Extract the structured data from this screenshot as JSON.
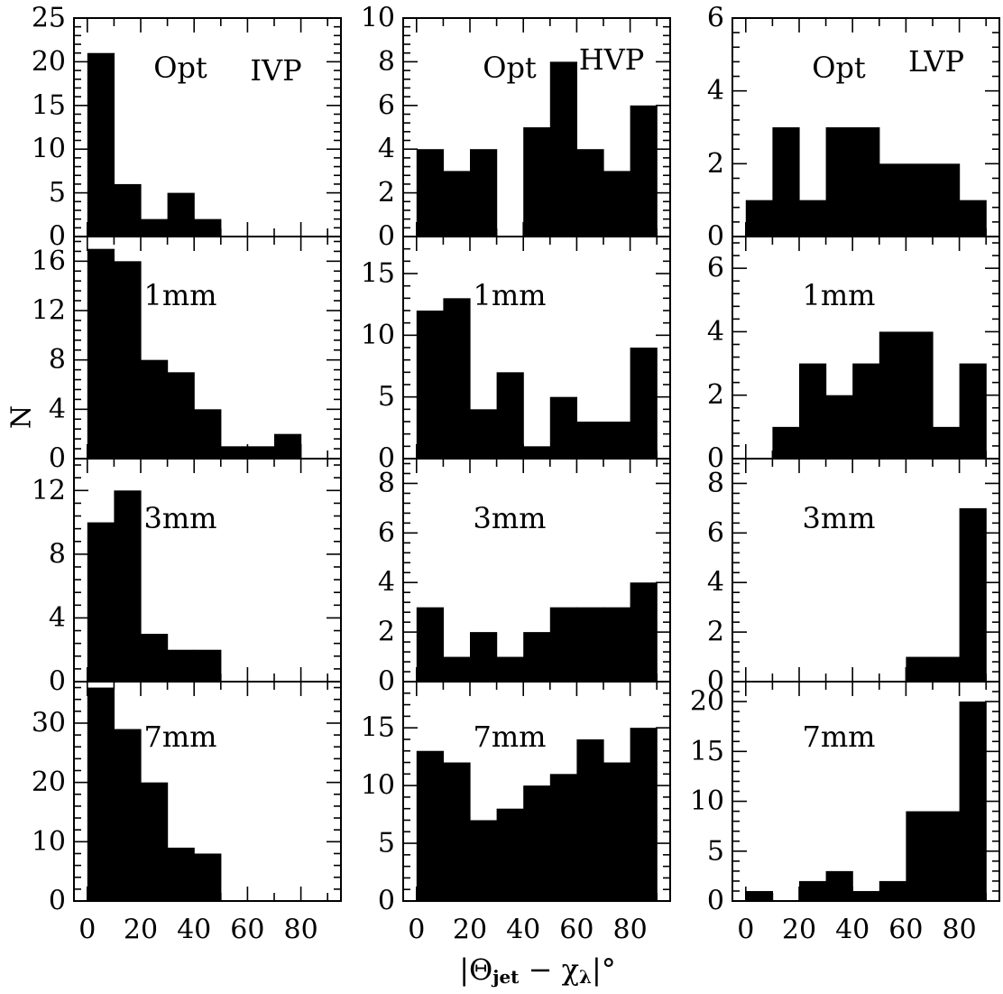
{
  "chart_data": {
    "type": "bar",
    "layout": "4x3 grid of histograms",
    "xlabel": "|Θ_jet − χ_λ|°",
    "ylabel": "N",
    "bin_edges": [
      0,
      10,
      20,
      30,
      40,
      50,
      60,
      70,
      80,
      90
    ],
    "xlim": [
      -5,
      95
    ],
    "x_ticks": [
      0,
      20,
      40,
      60,
      80
    ],
    "columns": [
      "IVP",
      "HVP",
      "LVP"
    ],
    "rows": [
      "Opt",
      "1mm",
      "3mm",
      "7mm"
    ],
    "panels": [
      {
        "row": "Opt",
        "column": "IVP",
        "label": "Opt",
        "group_label": "IVP",
        "ylim": [
          0,
          25
        ],
        "y_ticks": [
          0,
          5,
          10,
          15,
          20,
          25
        ],
        "values": [
          21,
          6,
          2,
          5,
          2,
          0,
          0,
          0,
          0
        ]
      },
      {
        "row": "Opt",
        "column": "HVP",
        "label": "Opt",
        "group_label": "HVP",
        "ylim": [
          0,
          10
        ],
        "y_ticks": [
          0,
          2,
          4,
          6,
          8,
          10
        ],
        "values": [
          4,
          3,
          4,
          0,
          5,
          8,
          4,
          3,
          6
        ]
      },
      {
        "row": "Opt",
        "column": "LVP",
        "label": "Opt",
        "group_label": "LVP",
        "ylim": [
          0,
          6
        ],
        "y_ticks": [
          0,
          2,
          4,
          6
        ],
        "values": [
          1,
          3,
          1,
          3,
          3,
          2,
          2,
          2,
          1
        ]
      },
      {
        "row": "1mm",
        "column": "IVP",
        "label": "1mm",
        "ylim": [
          0,
          18
        ],
        "y_ticks": [
          0,
          4,
          8,
          12,
          16
        ],
        "values": [
          17,
          16,
          8,
          7,
          4,
          1,
          1,
          2,
          0
        ]
      },
      {
        "row": "1mm",
        "column": "HVP",
        "label": "1mm",
        "ylim": [
          0,
          18
        ],
        "y_ticks": [
          0,
          5,
          10,
          15
        ],
        "values": [
          12,
          13,
          4,
          7,
          1,
          5,
          3,
          3,
          9
        ]
      },
      {
        "row": "1mm",
        "column": "LVP",
        "label": "1mm",
        "ylim": [
          0,
          7
        ],
        "y_ticks": [
          0,
          2,
          4,
          6
        ],
        "values": [
          0,
          1,
          3,
          2,
          3,
          4,
          4,
          1,
          3
        ]
      },
      {
        "row": "3mm",
        "column": "IVP",
        "label": "3mm",
        "ylim": [
          0,
          14
        ],
        "y_ticks": [
          0,
          4,
          8,
          12
        ],
        "values": [
          10,
          12,
          3,
          2,
          2,
          0,
          0,
          0,
          0
        ]
      },
      {
        "row": "3mm",
        "column": "HVP",
        "label": "3mm",
        "ylim": [
          0,
          9
        ],
        "y_ticks": [
          0,
          2,
          4,
          6,
          8
        ],
        "values": [
          3,
          1,
          2,
          1,
          2,
          3,
          3,
          3,
          4
        ]
      },
      {
        "row": "3mm",
        "column": "LVP",
        "label": "3mm",
        "ylim": [
          0,
          9
        ],
        "y_ticks": [
          0,
          2,
          4,
          6,
          8
        ],
        "values": [
          0,
          0,
          0,
          0,
          0,
          0,
          1,
          1,
          7
        ]
      },
      {
        "row": "7mm",
        "column": "IVP",
        "label": "7mm",
        "ylim": [
          0,
          37
        ],
        "y_ticks": [
          0,
          10,
          20,
          30
        ],
        "values": [
          36,
          29,
          20,
          9,
          8,
          0,
          0,
          0,
          0
        ]
      },
      {
        "row": "7mm",
        "column": "HVP",
        "label": "7mm",
        "ylim": [
          0,
          19
        ],
        "y_ticks": [
          0,
          5,
          10,
          15
        ],
        "values": [
          13,
          12,
          7,
          8,
          10,
          11,
          14,
          12,
          15
        ]
      },
      {
        "row": "7mm",
        "column": "LVP",
        "label": "7mm",
        "ylim": [
          0,
          22
        ],
        "y_ticks": [
          0,
          5,
          10,
          15,
          20
        ],
        "values": [
          1,
          0,
          2,
          3,
          1,
          2,
          9,
          9,
          20
        ]
      }
    ]
  }
}
